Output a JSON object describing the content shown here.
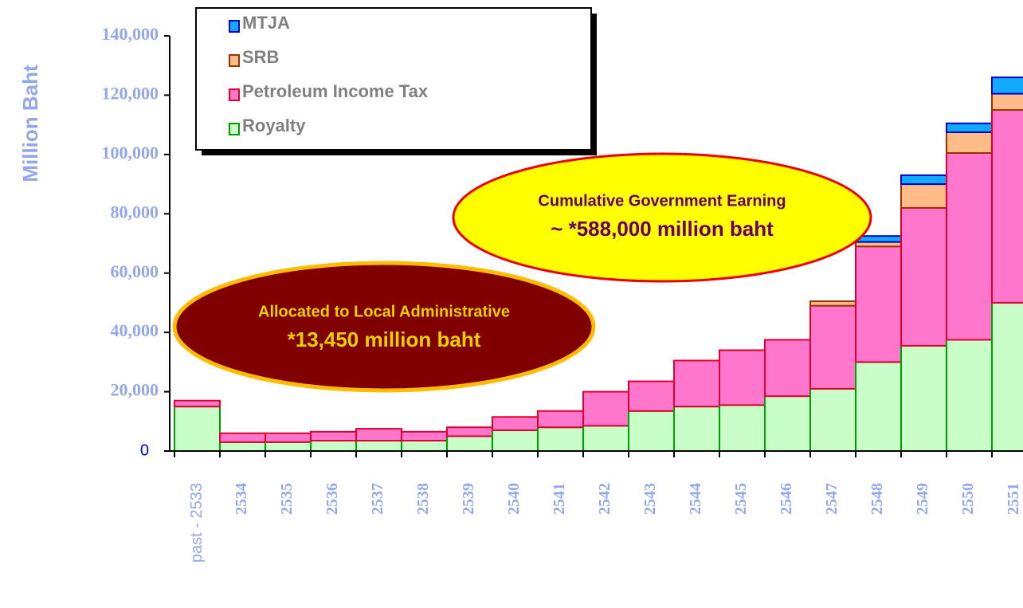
{
  "chart_data": {
    "type": "stacked_bar",
    "y_label": "Million Baht",
    "categories": [
      "past - 2533",
      "2534",
      "2535",
      "2536",
      "2537",
      "2538",
      "2539",
      "2540",
      "2541",
      "2542",
      "2543",
      "2544",
      "2545",
      "2546",
      "2547",
      "2548",
      "2549",
      "2550",
      "2551"
    ],
    "series": [
      {
        "name": "Royalty",
        "color": "#c8ffc8",
        "border": "#00a000",
        "values": [
          15000,
          3000,
          3000,
          3500,
          3500,
          3500,
          5000,
          7000,
          8000,
          8500,
          13500,
          15000,
          15500,
          18500,
          21000,
          30000,
          35500,
          37500,
          50000
        ]
      },
      {
        "name": "Petroleum Income Tax",
        "color": "#ff77cc",
        "border": "#e00030",
        "values": [
          2000,
          3000,
          3000,
          3000,
          4000,
          3000,
          3000,
          4500,
          5500,
          11500,
          10000,
          15500,
          18500,
          19000,
          28000,
          39000,
          46500,
          63000,
          65000
        ]
      },
      {
        "name": "SRB",
        "color": "#ffbb88",
        "border": "#993300",
        "values": [
          null,
          null,
          null,
          null,
          null,
          null,
          null,
          null,
          null,
          null,
          null,
          null,
          null,
          null,
          1500,
          1500,
          8000,
          7000,
          5500
        ]
      },
      {
        "name": "MTJA",
        "color": "#11aaff",
        "border": "#0000cc",
        "values": [
          null,
          null,
          null,
          null,
          null,
          null,
          null,
          null,
          null,
          null,
          null,
          null,
          null,
          null,
          null,
          2000,
          3000,
          3000,
          5500
        ]
      }
    ],
    "ylim": [
      0,
      140000
    ],
    "yticks": [
      0,
      {
        "value": 20000,
        "label": "20,000"
      },
      {
        "value": 40000,
        "label": "40,000"
      },
      {
        "value": 60000,
        "label": "60,000"
      },
      {
        "value": 80000,
        "label": "80,000"
      },
      {
        "value": 100000,
        "label": "100,000"
      },
      {
        "value": 120000,
        "label": "120,000"
      },
      {
        "value": 140000,
        "label": "140,000"
      }
    ],
    "annotations": [
      {
        "lines": [
          "Cumulative Government Earning",
          "~ *588,000 million baht"
        ]
      },
      {
        "lines": [
          "Allocated to Local Administrative",
          "*13,450 million baht"
        ]
      }
    ]
  }
}
